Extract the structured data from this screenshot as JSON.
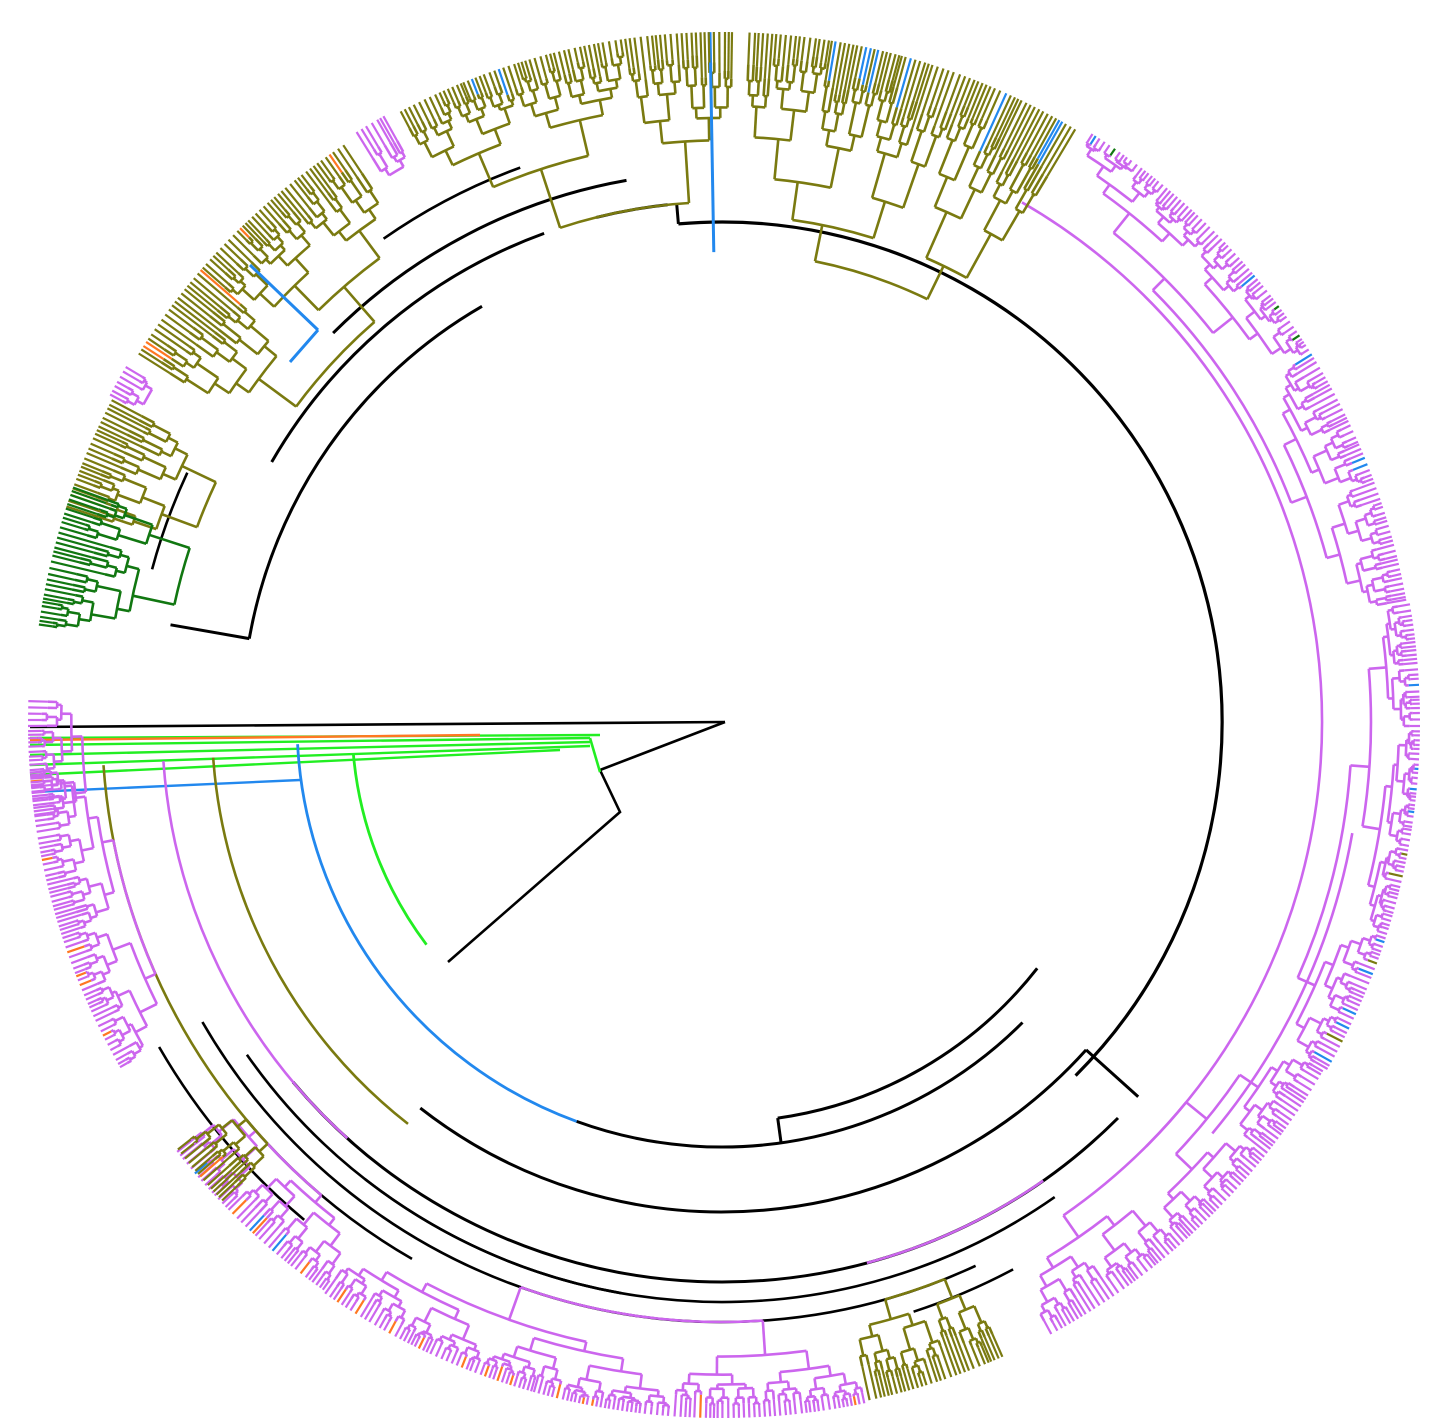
{
  "figure": {
    "kind": "circular-phylogenetic-tree",
    "title": "",
    "colors": {
      "backbone": "#000000",
      "clade_magenta": "#cc66ee",
      "clade_olive": "#7a7a10",
      "clade_bright_green": "#22ee22",
      "clade_dark_green": "#117711",
      "clade_blue": "#2288ee",
      "clade_orange": "#ff7722"
    },
    "clades": [
      {
        "name": "",
        "color_key": "clade_magenta",
        "share": "largest"
      },
      {
        "name": "",
        "color_key": "clade_olive",
        "share": "large"
      },
      {
        "name": "",
        "color_key": "clade_bright_green",
        "share": "small"
      },
      {
        "name": "",
        "color_key": "clade_dark_green",
        "share": "small"
      },
      {
        "name": "",
        "color_key": "clade_blue",
        "share": "minor"
      },
      {
        "name": "",
        "color_key": "clade_orange",
        "share": "minor"
      }
    ]
  }
}
